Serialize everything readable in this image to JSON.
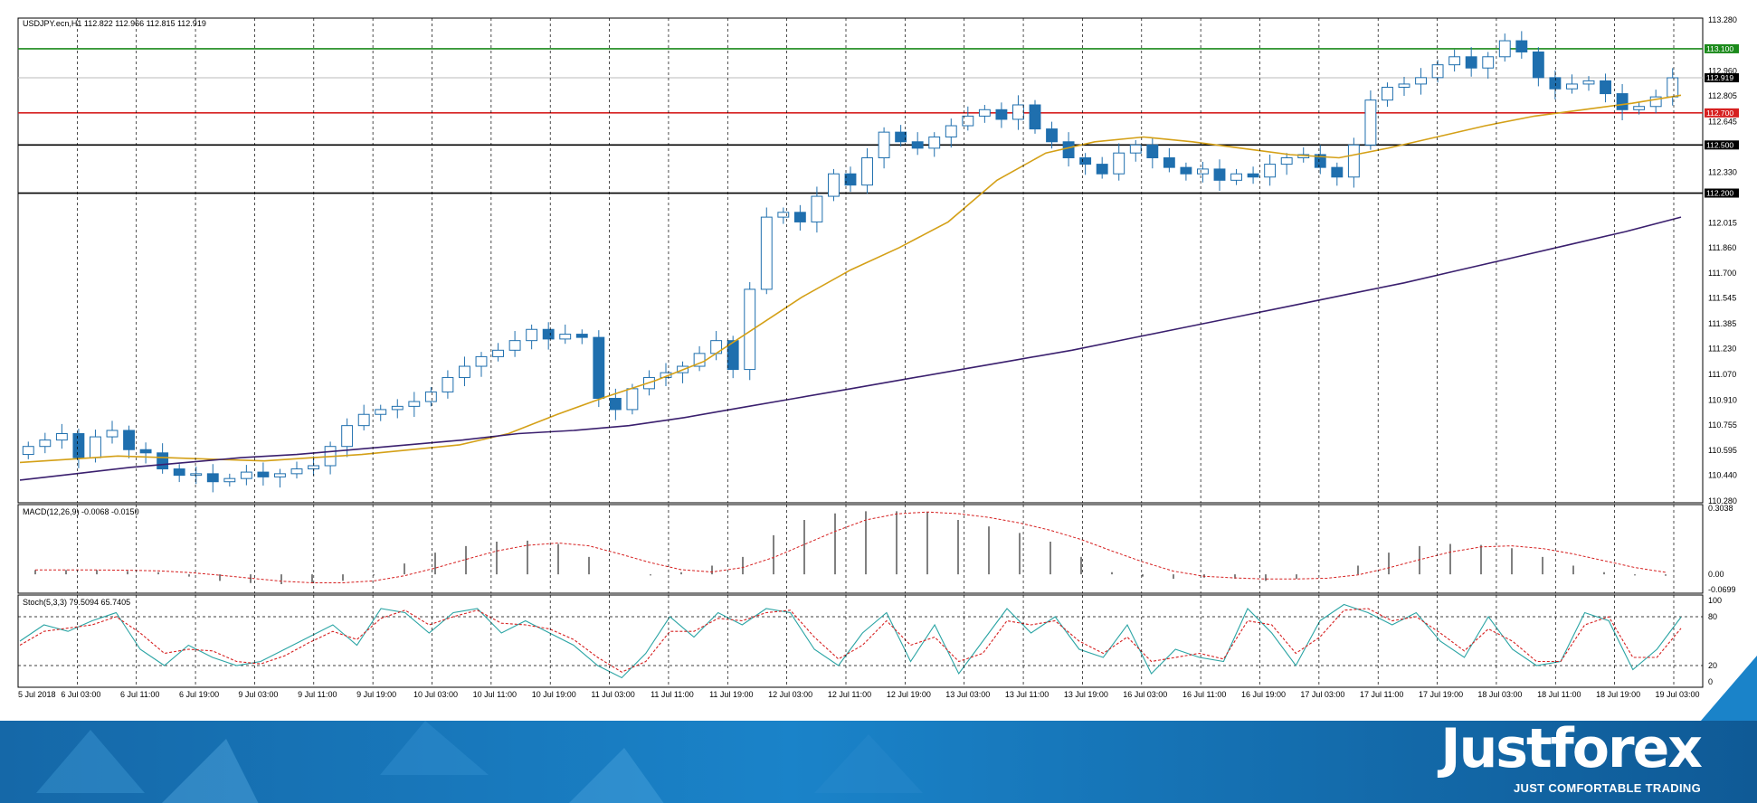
{
  "header": {
    "title": "USDJPY.ecn,H1  112.822 112.966 112.815 112.919"
  },
  "indicators": {
    "macd_label": "MACD(12,26,9) -0.0068 -0.0150",
    "stoch_label": "Stoch(5,3,3) 79.5094 65.7405"
  },
  "colors": {
    "candle": "#1f6fae",
    "ema_short": "#d4a017",
    "ema_long": "#3a1f6e",
    "level_green": "#1b8a1b",
    "level_red": "#d62020",
    "level_black": "#000000",
    "stoch_main": "#2aa4a4",
    "stoch_signal": "#d62020"
  },
  "brand": {
    "name": "Justforex",
    "tagline": "JUST COMFORTABLE TRADING"
  },
  "chart_data": [
    {
      "type": "candlestick",
      "symbol": "USDJPY.ecn",
      "timeframe": "H1",
      "ohlc_last": {
        "open": 112.822,
        "high": 112.966,
        "low": 112.815,
        "close": 112.919
      },
      "ylim": [
        110.28,
        113.28
      ],
      "y_ticks": [
        "113.280",
        "112.960",
        "112.805",
        "112.645",
        "112.330",
        "112.015",
        "111.860",
        "111.700",
        "111.545",
        "111.385",
        "111.230",
        "111.070",
        "110.910",
        "110.755",
        "110.595",
        "110.440",
        "110.280"
      ],
      "x_ticks": [
        "5 Jul 2018",
        "6 Jul 03:00",
        "6 Jul 11:00",
        "6 Jul 19:00",
        "9 Jul 03:00",
        "9 Jul 11:00",
        "9 Jul 19:00",
        "10 Jul 03:00",
        "10 Jul 11:00",
        "10 Jul 19:00",
        "11 Jul 03:00",
        "11 Jul 11:00",
        "11 Jul 19:00",
        "12 Jul 03:00",
        "12 Jul 11:00",
        "12 Jul 19:00",
        "13 Jul 03:00",
        "13 Jul 11:00",
        "13 Jul 19:00",
        "16 Jul 03:00",
        "16 Jul 11:00",
        "16 Jul 19:00",
        "17 Jul 03:00",
        "17 Jul 11:00",
        "17 Jul 19:00",
        "18 Jul 03:00",
        "18 Jul 11:00",
        "18 Jul 19:00",
        "19 Jul 03:00"
      ],
      "levels": [
        {
          "value": 113.1,
          "label": "113.100",
          "color": "#1b8a1b"
        },
        {
          "value": 112.919,
          "label": "112.919",
          "color": "#000000"
        },
        {
          "value": 112.7,
          "label": "112.700",
          "color": "#d62020"
        },
        {
          "value": 112.5,
          "label": "112.500",
          "color": "#000000"
        },
        {
          "value": 112.2,
          "label": "112.200",
          "color": "#000000"
        }
      ],
      "close_path": [
        110.62,
        110.66,
        110.7,
        110.55,
        110.68,
        110.72,
        110.6,
        110.58,
        110.48,
        110.44,
        110.45,
        110.4,
        110.42,
        110.46,
        110.43,
        110.45,
        110.48,
        110.5,
        110.62,
        110.75,
        110.82,
        110.85,
        110.87,
        110.9,
        110.96,
        111.05,
        111.12,
        111.18,
        111.22,
        111.28,
        111.35,
        111.29,
        111.32,
        111.3,
        110.92,
        110.85,
        110.98,
        111.05,
        111.08,
        111.12,
        111.2,
        111.28,
        111.1,
        111.6,
        112.05,
        112.08,
        112.02,
        112.18,
        112.32,
        112.25,
        112.42,
        112.58,
        112.52,
        112.48,
        112.55,
        112.62,
        112.68,
        112.72,
        112.66,
        112.75,
        112.6,
        112.52,
        112.42,
        112.38,
        112.32,
        112.45,
        112.5,
        112.42,
        112.36,
        112.32,
        112.35,
        112.28,
        112.32,
        112.3,
        112.38,
        112.42,
        112.44,
        112.36,
        112.3,
        112.5,
        112.78,
        112.86,
        112.88,
        112.92,
        113.0,
        113.05,
        112.98,
        113.05,
        113.15,
        113.08,
        112.92,
        112.85,
        112.88,
        112.9,
        112.82,
        112.72,
        112.74,
        112.8,
        112.919
      ],
      "series": [
        {
          "name": "MA short",
          "color": "#d4a017",
          "values": [
            110.52,
            110.54,
            110.56,
            110.55,
            110.54,
            110.53,
            110.55,
            110.57,
            110.6,
            110.63,
            110.7,
            110.82,
            110.93,
            111.03,
            111.15,
            111.35,
            111.55,
            111.72,
            111.86,
            112.02,
            112.28,
            112.45,
            112.52,
            112.55,
            112.52,
            112.48,
            112.44,
            112.42,
            112.48,
            112.55,
            112.62,
            112.68,
            112.72,
            112.76,
            112.81
          ]
        },
        {
          "name": "MA long",
          "color": "#3a1f6e",
          "values": [
            110.41,
            110.45,
            110.49,
            110.52,
            110.55,
            110.57,
            110.6,
            110.63,
            110.66,
            110.7,
            110.72,
            110.75,
            110.8,
            110.86,
            110.92,
            110.98,
            111.04,
            111.1,
            111.16,
            111.22,
            111.29,
            111.36,
            111.43,
            111.5,
            111.57,
            111.64,
            111.72,
            111.8,
            111.88,
            111.96,
            112.05
          ]
        }
      ]
    },
    {
      "type": "histogram",
      "name": "MACD(12,26,9)",
      "ylim": [
        -0.0699,
        0.3038
      ],
      "y_ticks": [
        "0.3038",
        "0.00",
        "-0.0699"
      ],
      "signal_line_color": "#d62020",
      "values": [
        0.02,
        0.02,
        0.02,
        0.015,
        0.01,
        -0.01,
        -0.03,
        -0.04,
        -0.045,
        -0.04,
        -0.03,
        -0.005,
        0.05,
        0.1,
        0.13,
        0.15,
        0.155,
        0.14,
        0.08,
        0.0,
        -0.005,
        0.01,
        0.04,
        0.08,
        0.18,
        0.25,
        0.28,
        0.29,
        0.29,
        0.285,
        0.25,
        0.22,
        0.19,
        0.15,
        0.08,
        0.01,
        -0.01,
        -0.02,
        -0.015,
        -0.02,
        -0.03,
        -0.02,
        0.0,
        0.04,
        0.1,
        0.13,
        0.14,
        0.135,
        0.12,
        0.08,
        0.04,
        0.01,
        -0.005,
        -0.0068
      ]
    },
    {
      "type": "line",
      "name": "Stoch(5,3,3)",
      "ylim": [
        0,
        100
      ],
      "y_ticks": [
        "100",
        "80",
        "20",
        "0"
      ],
      "levels": [
        80,
        20
      ],
      "series": [
        {
          "name": "%K",
          "color": "#2aa4a4",
          "values": [
            50,
            70,
            62,
            75,
            85,
            40,
            20,
            45,
            30,
            20,
            25,
            40,
            55,
            70,
            45,
            90,
            85,
            60,
            85,
            90,
            60,
            75,
            60,
            45,
            20,
            5,
            35,
            80,
            55,
            85,
            70,
            90,
            85,
            40,
            20,
            60,
            85,
            25,
            70,
            10,
            50,
            90,
            60,
            80,
            40,
            30,
            70,
            10,
            40,
            30,
            25,
            90,
            60,
            20,
            75,
            95,
            85,
            70,
            85,
            50,
            30,
            80,
            40,
            20,
            25,
            85,
            75,
            15,
            40,
            79.5
          ]
        },
        {
          "name": "%D",
          "color": "#d62020",
          "values": [
            45,
            62,
            66,
            70,
            80,
            60,
            35,
            40,
            38,
            25,
            22,
            32,
            48,
            62,
            52,
            78,
            88,
            70,
            80,
            88,
            72,
            70,
            65,
            52,
            30,
            12,
            25,
            62,
            62,
            78,
            75,
            85,
            88,
            55,
            28,
            45,
            75,
            45,
            55,
            25,
            35,
            75,
            70,
            75,
            50,
            35,
            55,
            25,
            30,
            35,
            28,
            75,
            70,
            35,
            55,
            88,
            90,
            75,
            80,
            60,
            38,
            65,
            50,
            25,
            25,
            70,
            80,
            30,
            30,
            65.7
          ]
        }
      ]
    }
  ]
}
